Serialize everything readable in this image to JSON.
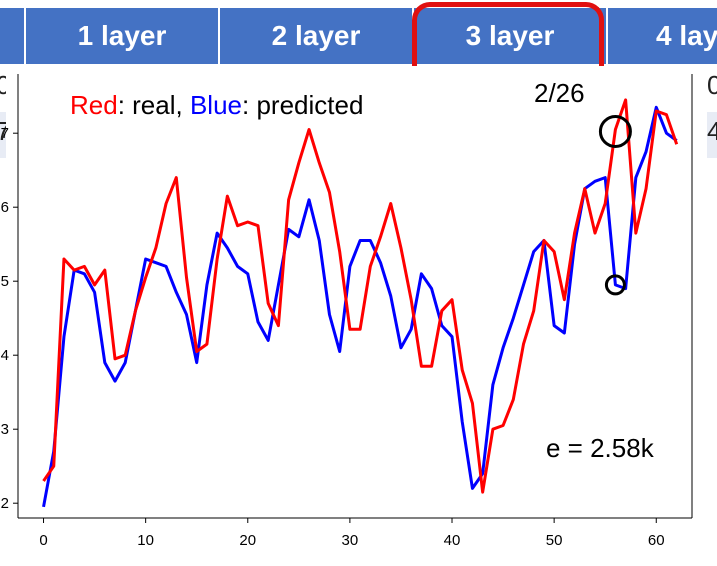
{
  "table": {
    "headers": [
      "1 layer",
      "2 layer",
      "3 layer",
      "4 lay"
    ],
    "row_fragments_left": [
      "0",
      "7"
    ],
    "row_fragments_right": [
      "0",
      "4"
    ]
  },
  "colors": {
    "header_bg": "#4472c4",
    "real": "#ff0000",
    "predicted": "#0000ff",
    "highlight": "#e01010"
  },
  "chart_data": {
    "type": "line",
    "legend_parts": {
      "real_word": "Red",
      "real_rest": ": real, ",
      "pred_word": "Blue",
      "pred_rest": ": predicted"
    },
    "annotation_date": "2/26",
    "error_label": "e = 2.58k",
    "xlim": [
      -2.5,
      63.5
    ],
    "ylim": [
      1.8,
      7.8
    ],
    "x_ticks": [
      0,
      10,
      20,
      30,
      40,
      50,
      60
    ],
    "y_ticks": [
      2,
      3,
      4,
      5,
      6,
      7
    ],
    "series": [
      {
        "key": "real",
        "values": [
          2.3,
          2.5,
          5.3,
          5.15,
          5.2,
          4.95,
          5.15,
          3.95,
          4.0,
          4.6,
          5.05,
          5.45,
          6.05,
          6.4,
          5.05,
          4.05,
          4.15,
          5.3,
          6.15,
          5.75,
          5.8,
          5.75,
          4.7,
          4.4,
          6.1,
          6.6,
          7.05,
          6.6,
          6.2,
          5.4,
          4.35,
          4.35,
          5.2,
          5.6,
          6.05,
          5.45,
          4.75,
          3.85,
          3.85,
          4.6,
          4.75,
          3.8,
          3.35,
          2.15,
          3.0,
          3.05,
          3.4,
          4.15,
          4.6,
          5.55,
          5.4,
          4.75,
          5.65,
          6.25,
          5.65,
          6.05,
          7.05,
          7.45,
          5.65,
          6.25,
          7.3,
          7.25,
          6.85
        ]
      },
      {
        "key": "predicted",
        "values": [
          1.95,
          2.7,
          4.25,
          5.15,
          5.1,
          4.85,
          3.9,
          3.65,
          3.9,
          4.6,
          5.3,
          5.25,
          5.2,
          4.85,
          4.55,
          3.9,
          4.95,
          5.65,
          5.45,
          5.2,
          5.1,
          4.45,
          4.2,
          4.95,
          5.7,
          5.6,
          6.1,
          5.55,
          4.55,
          4.05,
          5.2,
          5.55,
          5.55,
          5.25,
          4.8,
          4.1,
          4.35,
          5.1,
          4.9,
          4.4,
          4.25,
          3.1,
          2.2,
          2.4,
          3.6,
          4.1,
          4.5,
          4.95,
          5.4,
          5.55,
          4.4,
          4.3,
          5.5,
          6.25,
          6.35,
          6.4,
          4.95,
          4.9,
          6.4,
          6.75,
          7.35,
          7.0,
          6.9
        ]
      }
    ],
    "circled_points": [
      {
        "series": "real",
        "x": 56
      },
      {
        "series": "predicted",
        "x": 56
      }
    ]
  }
}
